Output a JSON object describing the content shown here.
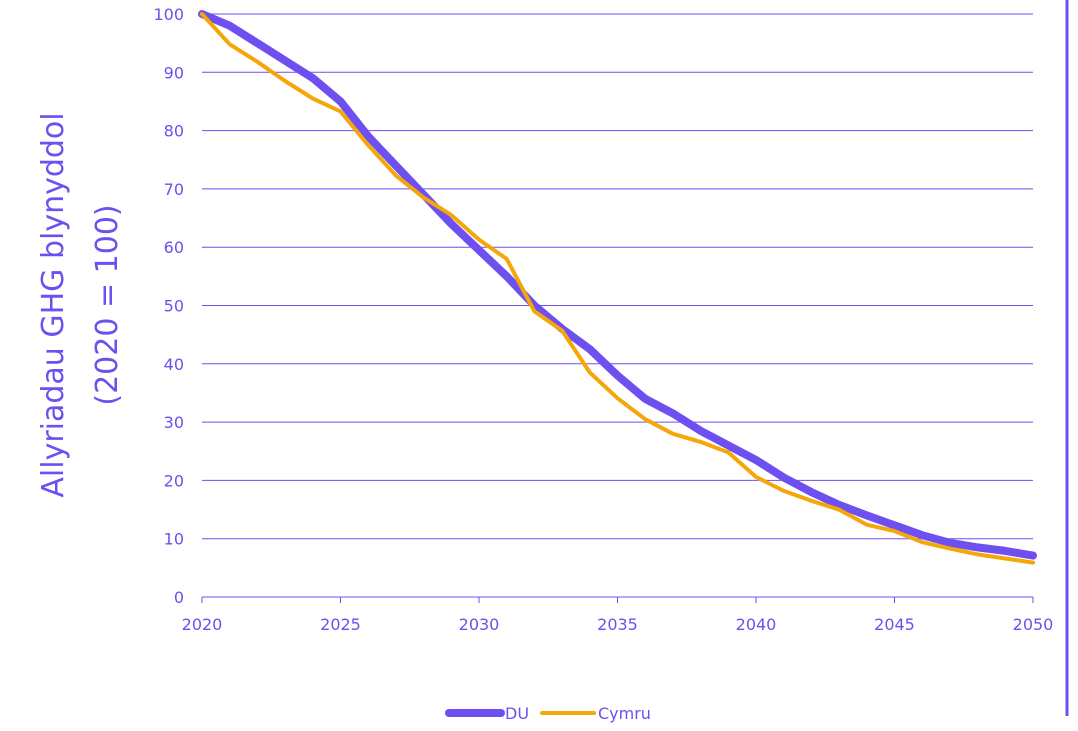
{
  "chart_data": {
    "type": "line",
    "title": "",
    "xlabel": "",
    "ylabel_lines": [
      "Allyriadau GHG blynyddol",
      "(2020 = 100)"
    ],
    "xlim": [
      2020,
      2050
    ],
    "ylim": [
      0,
      100
    ],
    "x_ticks": [
      2020,
      2025,
      2030,
      2035,
      2040,
      2045,
      2050
    ],
    "y_ticks": [
      0,
      10,
      20,
      30,
      40,
      50,
      60,
      70,
      80,
      90,
      100
    ],
    "grid": "horizontal",
    "legend_position": "bottom-center",
    "x": [
      2020,
      2021,
      2022,
      2023,
      2024,
      2025,
      2026,
      2027,
      2028,
      2029,
      2030,
      2031,
      2032,
      2033,
      2034,
      2035,
      2036,
      2037,
      2038,
      2039,
      2040,
      2041,
      2042,
      2043,
      2044,
      2045,
      2046,
      2047,
      2048,
      2049,
      2050
    ],
    "series": [
      {
        "name": "DU",
        "color": "#6e4ff0",
        "values": [
          100,
          98,
          95,
          92,
          89,
          85,
          79,
          74,
          69,
          64,
          59.5,
          55,
          50,
          46,
          42.5,
          38,
          34,
          31.5,
          28.5,
          26,
          23.5,
          20.5,
          18,
          15.8,
          14,
          12.3,
          10.6,
          9.3,
          8.5,
          7.9,
          7.1
        ]
      },
      {
        "name": "Cymru",
        "color": "#f5a70a",
        "values": [
          100,
          94.8,
          91.8,
          88.5,
          85.5,
          83.3,
          77.5,
          72.3,
          68.5,
          65.5,
          61.3,
          58,
          49,
          45.7,
          38.5,
          34.1,
          30.5,
          28,
          26.6,
          24.8,
          20.6,
          18.2,
          16.5,
          15,
          12.4,
          11.3,
          9.4,
          8.3,
          7.3,
          6.6,
          5.9
        ]
      }
    ]
  }
}
